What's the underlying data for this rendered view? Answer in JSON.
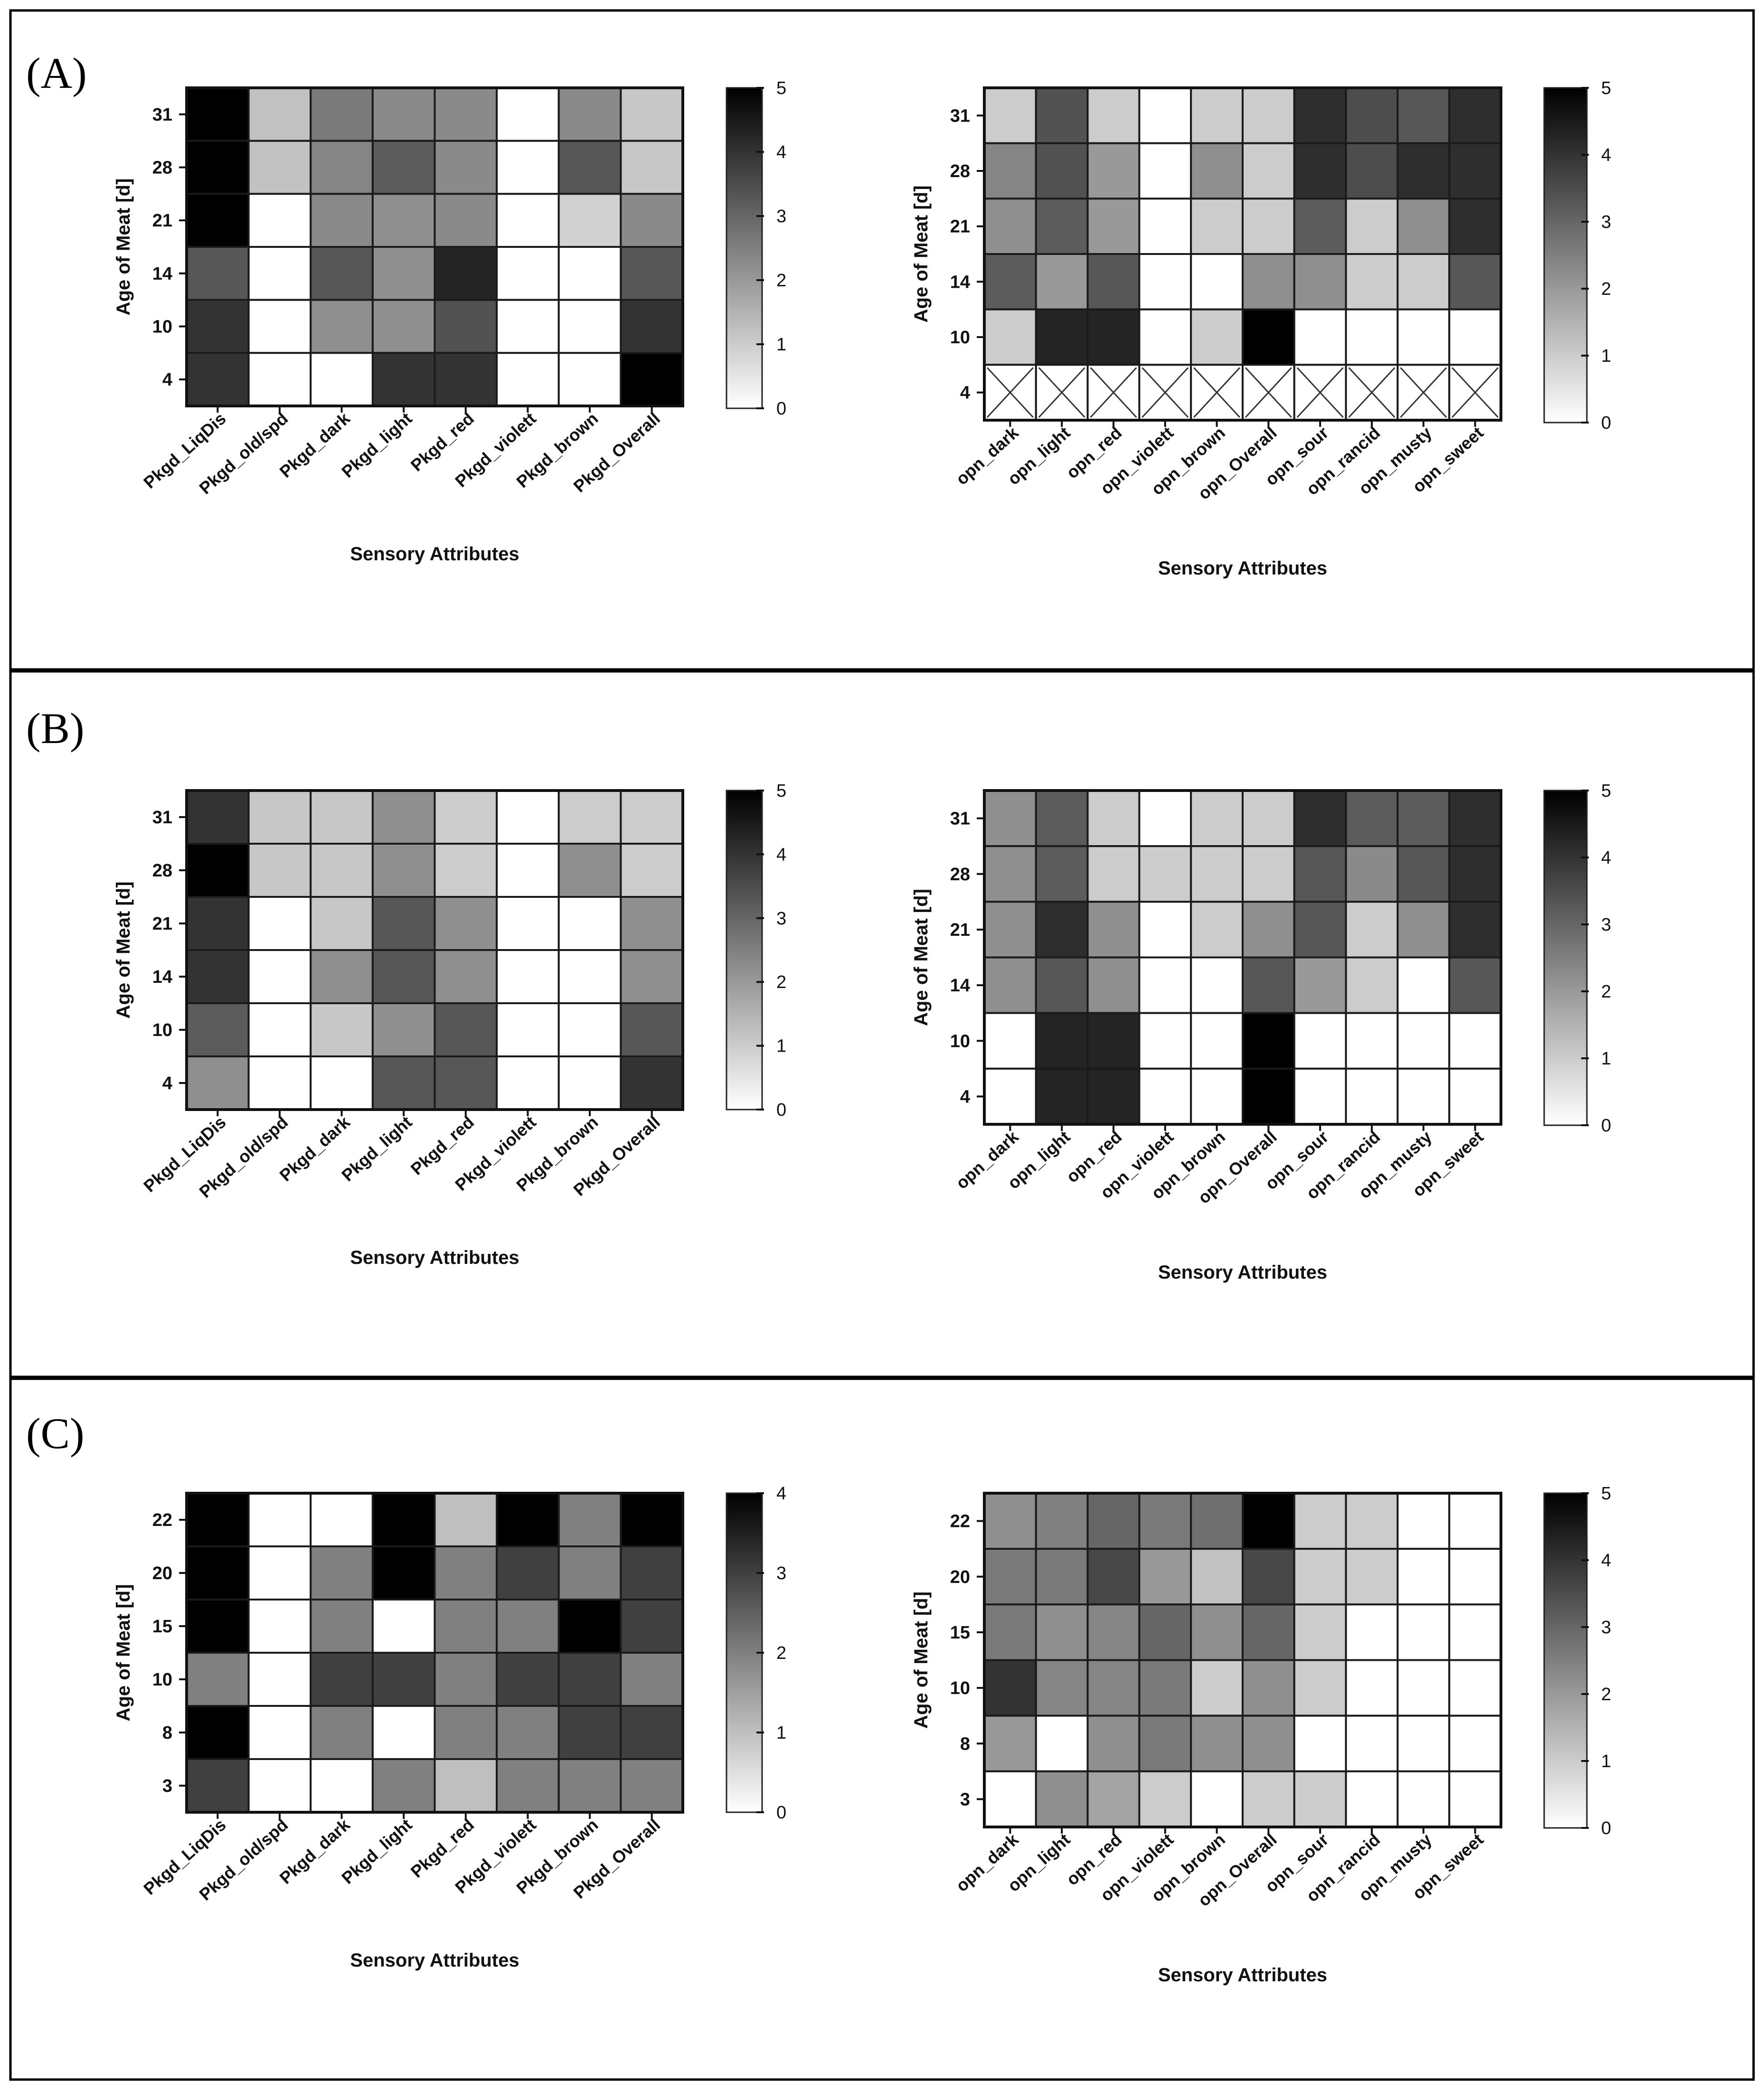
{
  "panels": [
    {
      "letter": "(A)"
    },
    {
      "letter": "(B)"
    },
    {
      "letter": "(C)"
    }
  ],
  "colors": {
    "low": "#ffffff",
    "high": "#000000",
    "frame": "#222222",
    "divider": "#000000"
  },
  "chart_data": [
    {
      "type": "heatmap",
      "panel": "(A)",
      "xlabel": "Sensory Attributes",
      "ylabel": "Age of Meat [d]",
      "x_categories": [
        "Pkgd_LiqDis",
        "Pkgd_old/spd",
        "Pkgd_dark",
        "Pkgd_light",
        "Pkgd_red",
        "Pkgd_violett",
        "Pkgd_brown",
        "Pkgd_Overall"
      ],
      "y_categories": [
        "31",
        "28",
        "21",
        "14",
        "10",
        "4"
      ],
      "values": [
        [
          5.0,
          1.2,
          2.6,
          2.3,
          2.3,
          0,
          2.3,
          1.1
        ],
        [
          5.0,
          1.2,
          2.4,
          3.2,
          2.3,
          0,
          3.3,
          1.1
        ],
        [
          5.0,
          0,
          2.3,
          2.2,
          2.3,
          0,
          0.9,
          2.3
        ],
        [
          3.3,
          0,
          3.3,
          2.2,
          4.3,
          0,
          0,
          3.3
        ],
        [
          4.0,
          0,
          2.2,
          2.2,
          3.4,
          0,
          0,
          4.0
        ],
        [
          4.0,
          0,
          0,
          4.0,
          4.0,
          0,
          0,
          5.0
        ]
      ],
      "vmin": 0,
      "vmax": 5,
      "colorbar_ticks": [
        "0",
        "1",
        "2",
        "3",
        "4",
        "5"
      ],
      "colormap": "white-to-black"
    },
    {
      "type": "heatmap",
      "panel": "(A)",
      "xlabel": "Sensory Attributes",
      "ylabel": "Age of Meat [d]",
      "x_categories": [
        "opn_dark",
        "opn_light",
        "opn_red",
        "opn_violett",
        "opn_brown",
        "opn_Overall",
        "opn_sour",
        "opn_rancid",
        "opn_musty",
        "opn_sweet"
      ],
      "y_categories": [
        "31",
        "28",
        "21",
        "14",
        "10",
        "4"
      ],
      "values": [
        [
          1.0,
          3.4,
          1.0,
          0,
          1.0,
          1.0,
          4.1,
          3.5,
          3.3,
          4.1
        ],
        [
          2.4,
          3.4,
          2.0,
          0,
          2.2,
          1.0,
          4.1,
          3.5,
          4.1,
          4.1
        ],
        [
          2.2,
          3.2,
          2.0,
          0,
          1.0,
          1.0,
          3.2,
          1.0,
          2.2,
          4.1
        ],
        [
          3.2,
          2.0,
          3.3,
          0,
          0,
          2.2,
          2.2,
          1.0,
          1.0,
          3.3
        ],
        [
          1.0,
          4.3,
          4.3,
          0,
          1.0,
          5.0,
          0,
          0,
          0,
          0
        ],
        [
          null,
          null,
          null,
          null,
          null,
          null,
          null,
          null,
          null,
          null
        ]
      ],
      "vmin": 0,
      "vmax": 5,
      "colorbar_ticks": [
        "0",
        "1",
        "2",
        "3",
        "4",
        "5"
      ],
      "colormap": "white-to-black"
    },
    {
      "type": "heatmap",
      "panel": "(B)",
      "xlabel": "Sensory Attributes",
      "ylabel": "Age of Meat [d]",
      "x_categories": [
        "Pkgd_LiqDis",
        "Pkgd_old/spd",
        "Pkgd_dark",
        "Pkgd_light",
        "Pkgd_red",
        "Pkgd_violett",
        "Pkgd_brown",
        "Pkgd_Overall"
      ],
      "y_categories": [
        "31",
        "28",
        "21",
        "14",
        "10",
        "4"
      ],
      "values": [
        [
          4.0,
          1.1,
          1.1,
          2.2,
          1.0,
          0,
          1.0,
          1.0
        ],
        [
          5.0,
          1.1,
          1.1,
          2.2,
          1.0,
          0,
          2.2,
          1.0
        ],
        [
          4.0,
          0,
          1.1,
          3.3,
          2.2,
          0,
          0,
          2.2
        ],
        [
          4.0,
          0,
          2.2,
          3.3,
          2.2,
          0,
          0,
          2.2
        ],
        [
          3.2,
          0,
          1.1,
          2.2,
          3.3,
          0,
          0,
          3.3
        ],
        [
          2.2,
          0,
          0,
          3.3,
          3.3,
          0,
          0,
          4.0
        ]
      ],
      "vmin": 0,
      "vmax": 5,
      "colorbar_ticks": [
        "0",
        "1",
        "2",
        "3",
        "4",
        "5"
      ],
      "colormap": "white-to-black"
    },
    {
      "type": "heatmap",
      "panel": "(B)",
      "xlabel": "Sensory Attributes",
      "ylabel": "Age of Meat [d]",
      "x_categories": [
        "opn_dark",
        "opn_light",
        "opn_red",
        "opn_violett",
        "opn_brown",
        "opn_Overall",
        "opn_sour",
        "opn_rancid",
        "opn_musty",
        "opn_sweet"
      ],
      "y_categories": [
        "31",
        "28",
        "21",
        "14",
        "10",
        "4"
      ],
      "values": [
        [
          2.2,
          3.2,
          1.0,
          0,
          1.0,
          1.0,
          4.1,
          3.2,
          3.2,
          4.1
        ],
        [
          2.2,
          3.2,
          1.0,
          1.0,
          1.0,
          1.0,
          3.3,
          2.3,
          3.3,
          4.1
        ],
        [
          2.2,
          4.1,
          2.2,
          0,
          1.0,
          2.2,
          3.3,
          1.0,
          2.2,
          4.1
        ],
        [
          2.2,
          3.3,
          2.2,
          0,
          0,
          3.3,
          2.0,
          1.0,
          0,
          3.3
        ],
        [
          0,
          4.3,
          4.3,
          0,
          0,
          5.0,
          0,
          0,
          0,
          0
        ],
        [
          0,
          4.3,
          4.3,
          0,
          0,
          5.0,
          0,
          0,
          0,
          0
        ]
      ],
      "vmin": 0,
      "vmax": 5,
      "colorbar_ticks": [
        "0",
        "1",
        "2",
        "3",
        "4",
        "5"
      ],
      "colormap": "white-to-black"
    },
    {
      "type": "heatmap",
      "panel": "(C)",
      "xlabel": "Sensory Attributes",
      "ylabel": "Age of Meat [d]",
      "x_categories": [
        "Pkgd_LiqDis",
        "Pkgd_old/spd",
        "Pkgd_dark",
        "Pkgd_light",
        "Pkgd_red",
        "Pkgd_violett",
        "Pkgd_brown",
        "Pkgd_Overall"
      ],
      "y_categories": [
        "22",
        "20",
        "15",
        "10",
        "8",
        "3"
      ],
      "values": [
        [
          4.0,
          0,
          0,
          4.0,
          1.0,
          4.0,
          2.0,
          4.0
        ],
        [
          4.0,
          0,
          2.0,
          4.0,
          2.0,
          3.0,
          2.0,
          3.0
        ],
        [
          4.0,
          0,
          2.0,
          0,
          2.0,
          2.0,
          4.0,
          3.0
        ],
        [
          2.0,
          0,
          3.0,
          3.0,
          2.0,
          3.0,
          3.0,
          2.0
        ],
        [
          4.0,
          0,
          2.0,
          0,
          2.0,
          2.0,
          3.0,
          3.0
        ],
        [
          3.0,
          0,
          0,
          2.0,
          1.0,
          2.0,
          2.0,
          2.0
        ]
      ],
      "vmin": 0,
      "vmax": 4,
      "colorbar_ticks": [
        "0",
        "1",
        "2",
        "3",
        "4"
      ],
      "colormap": "white-to-black"
    },
    {
      "type": "heatmap",
      "panel": "(C)",
      "xlabel": "Sensory Attributes",
      "ylabel": "Age of Meat [d]",
      "x_categories": [
        "opn_dark",
        "opn_light",
        "opn_red",
        "opn_violett",
        "opn_brown",
        "opn_Overall",
        "opn_sour",
        "opn_rancid",
        "opn_musty",
        "opn_sweet"
      ],
      "y_categories": [
        "22",
        "20",
        "15",
        "10",
        "8",
        "3"
      ],
      "values": [
        [
          2.2,
          2.5,
          3.0,
          2.6,
          2.8,
          5.0,
          1.0,
          1.0,
          0,
          0
        ],
        [
          2.6,
          2.6,
          3.6,
          2.0,
          1.2,
          3.6,
          1.0,
          1.0,
          0,
          0
        ],
        [
          2.6,
          2.2,
          2.4,
          3.0,
          2.2,
          3.0,
          1.0,
          0,
          0,
          0
        ],
        [
          4.0,
          2.4,
          2.4,
          2.6,
          1.0,
          2.2,
          1.0,
          0,
          0,
          0
        ],
        [
          2.0,
          0,
          2.2,
          2.6,
          2.2,
          2.2,
          0,
          0,
          0,
          0
        ],
        [
          0,
          2.2,
          1.8,
          1.0,
          0,
          1.0,
          1.0,
          0,
          0,
          0
        ]
      ],
      "vmin": 0,
      "vmax": 5,
      "colorbar_ticks": [
        "0",
        "1",
        "2",
        "3",
        "4",
        "5"
      ],
      "colormap": "white-to-black"
    }
  ]
}
